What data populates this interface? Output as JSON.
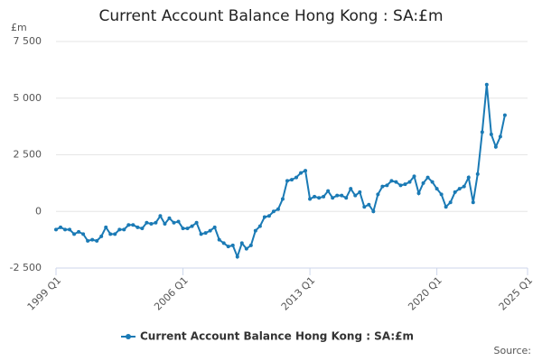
{
  "chart_data": {
    "type": "line",
    "title": "Current Account Balance Hong Kong : SA:£m",
    "y_label": "£m",
    "source": "Source:",
    "xlim": [
      1999,
      2025
    ],
    "xticks": [
      {
        "value": 1999,
        "label": "1999 Q1"
      },
      {
        "value": 2006,
        "label": "2006 Q1"
      },
      {
        "value": 2013,
        "label": "2013 Q1"
      },
      {
        "value": 2020,
        "label": "2020 Q1"
      },
      {
        "value": 2025,
        "label": "2025 Q1"
      }
    ],
    "ylim": [
      -2500,
      7500
    ],
    "yticks": [
      {
        "value": -2500,
        "label": "-2 500"
      },
      0,
      {
        "value": 2500,
        "label": "2 500"
      },
      {
        "value": 5000,
        "label": "5 000"
      },
      {
        "value": 7500,
        "label": "7 500"
      }
    ],
    "grid": true,
    "legend": "bottom",
    "x": [
      1999,
      1999.25,
      1999.5,
      1999.75,
      2000,
      2000.25,
      2000.5,
      2000.75,
      2001,
      2001.25,
      2001.5,
      2001.75,
      2002,
      2002.25,
      2002.5,
      2002.75,
      2003,
      2003.25,
      2003.5,
      2003.75,
      2004,
      2004.25,
      2004.5,
      2004.75,
      2005,
      2005.25,
      2005.5,
      2005.75,
      2006,
      2006.25,
      2006.5,
      2006.75,
      2007,
      2007.25,
      2007.5,
      2007.75,
      2008,
      2008.25,
      2008.5,
      2008.75,
      2009,
      2009.25,
      2009.5,
      2009.75,
      2010,
      2010.25,
      2010.5,
      2010.75,
      2011,
      2011.25,
      2011.5,
      2011.75,
      2012,
      2012.25,
      2012.5,
      2012.75,
      2013,
      2013.25,
      2013.5,
      2013.75,
      2014,
      2014.25,
      2014.5,
      2014.75,
      2015,
      2015.25,
      2015.5,
      2015.75,
      2016,
      2016.25,
      2016.5,
      2016.75,
      2017,
      2017.25,
      2017.5,
      2017.75,
      2018,
      2018.25,
      2018.5,
      2018.75,
      2019,
      2019.25,
      2019.5,
      2019.75,
      2020,
      2020.25,
      2020.5,
      2020.75,
      2021,
      2021.25,
      2021.5,
      2021.75,
      2022,
      2022.25,
      2022.5,
      2022.75,
      2023,
      2023.25,
      2023.5,
      2023.75
    ],
    "series": [
      {
        "name": "Current Account Balance Hong Kong : SA:£m",
        "color": "#1a7ab5",
        "values": [
          -800,
          -700,
          -800,
          -800,
          -1000,
          -900,
          -1000,
          -1300,
          -1250,
          -1300,
          -1100,
          -700,
          -1000,
          -1000,
          -800,
          -800,
          -600,
          -600,
          -700,
          -750,
          -500,
          -550,
          -500,
          -200,
          -550,
          -300,
          -500,
          -450,
          -750,
          -750,
          -650,
          -500,
          -1000,
          -950,
          -850,
          -700,
          -1250,
          -1400,
          -1550,
          -1500,
          -2000,
          -1400,
          -1650,
          -1500,
          -850,
          -650,
          -250,
          -200,
          0,
          100,
          550,
          1350,
          1400,
          1500,
          1700,
          1800,
          550,
          650,
          600,
          650,
          900,
          600,
          700,
          700,
          600,
          1000,
          700,
          850,
          200,
          300,
          0,
          750,
          1100,
          1150,
          1350,
          1300,
          1150,
          1200,
          1300,
          1550,
          800,
          1250,
          1500,
          1300,
          1000,
          750,
          200,
          400,
          850,
          1000,
          1100,
          1500,
          400,
          1650,
          3500,
          5600,
          3400,
          2850,
          3300,
          4250
        ]
      }
    ]
  }
}
